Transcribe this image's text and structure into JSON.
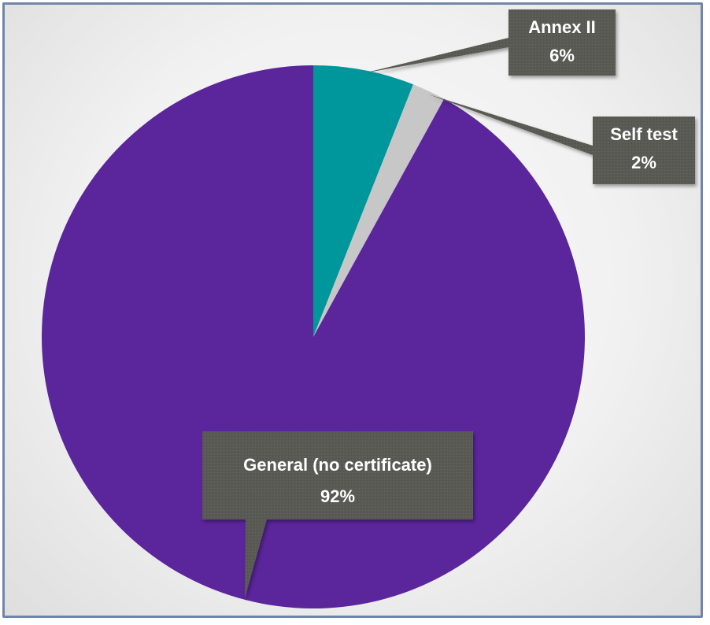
{
  "chart_data": {
    "type": "pie",
    "slices": [
      {
        "label": "Annex II",
        "value": 6,
        "pct_label": "6%",
        "color": "#00979c"
      },
      {
        "label": "Self test",
        "value": 2,
        "pct_label": "2%",
        "color": "#c7c7c7"
      },
      {
        "label": "General (no certificate)",
        "value": 92,
        "pct_label": "92%",
        "color": "#5b259b"
      }
    ],
    "start_angle_deg": 0,
    "direction": "clockwise",
    "label_style": "callout",
    "label_box_color": "#5a5a55"
  }
}
